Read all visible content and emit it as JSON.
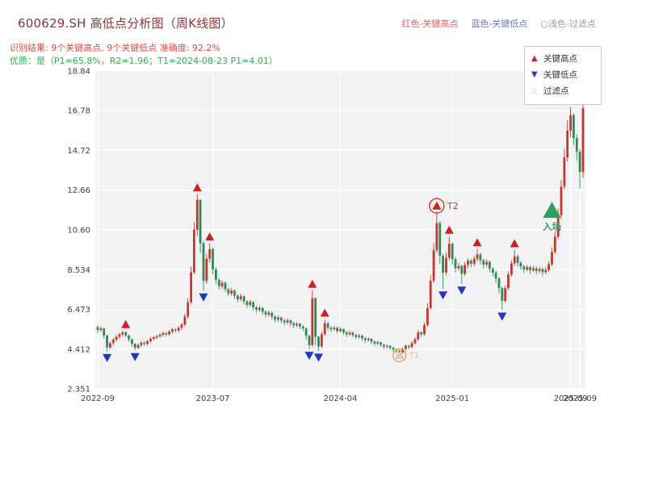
{
  "header": {
    "title": "600629.SH 高低点分析图（周K线图）",
    "color_key": [
      "红色-关键高点",
      "蓝色-关键低点",
      "○浅色-过滤点"
    ],
    "recognition": "识别结果: 9个关键高点, 9个关键低点  准确度: 92.2%",
    "quality": "优质：是（P1=65.8%，R2=1.96；T1=2024-08-23 P1=4.01）"
  },
  "legend": {
    "items": [
      {
        "label": "关键高点",
        "color": "#cf2222"
      },
      {
        "label": "关键低点",
        "color": "#2638c8"
      },
      {
        "label": "过滤点",
        "color": "#dfaaaa"
      }
    ]
  },
  "chart_data": {
    "type": "candlestick",
    "period": "weekly",
    "ylim": [
      2.351,
      18.84
    ],
    "y_ticks": [
      {
        "label": "18.84",
        "v": 18.84
      },
      {
        "label": "16.78",
        "v": 16.78
      },
      {
        "label": "14.72",
        "v": 14.72
      },
      {
        "label": "12.66",
        "v": 12.66
      },
      {
        "label": "10.60",
        "v": 10.6
      },
      {
        "label": "8.534",
        "v": 8.534
      },
      {
        "label": "6.473",
        "v": 6.473
      },
      {
        "label": "4.412",
        "v": 4.412
      },
      {
        "label": "2.351",
        "v": 2.351
      }
    ],
    "x_ticks": [
      {
        "label": "2022-09",
        "i": 0
      },
      {
        "label": "2023-07",
        "i": 37
      },
      {
        "label": "2024-04",
        "i": 78
      },
      {
        "label": "2025-01",
        "i": 114
      },
      {
        "label": "2025-09",
        "i": 152
      },
      {
        "label": "2025-09",
        "i": 155
      }
    ],
    "colors": {
      "up": "#c0392b",
      "down": "#2e8b57",
      "key_high": "#cf2020",
      "key_low": "#2436c4",
      "filtered": "#f0c8c8",
      "entry": "#2f9e63",
      "t1_ring": "#e8a33d",
      "t1_text": "#f2c27d",
      "t2_ring": "#d93025",
      "plot_bg": "#f2f2f4"
    },
    "candles": [
      [
        5.55,
        5.4,
        5.25,
        5.65
      ],
      [
        5.4,
        5.48,
        5.3,
        5.58
      ],
      [
        5.48,
        5.12,
        4.95,
        5.52
      ],
      [
        5.12,
        4.5,
        4.3,
        5.15
      ],
      [
        4.5,
        4.72,
        4.42,
        4.8
      ],
      [
        4.72,
        4.9,
        4.62,
        4.98
      ],
      [
        4.9,
        5.05,
        4.8,
        5.15
      ],
      [
        5.05,
        5.18,
        4.95,
        5.26
      ],
      [
        5.18,
        5.28,
        5.08,
        5.36
      ],
      [
        5.28,
        5.12,
        5.02,
        5.35
      ],
      [
        5.12,
        4.92,
        4.8,
        5.16
      ],
      [
        4.92,
        4.68,
        4.55,
        4.96
      ],
      [
        4.68,
        4.48,
        4.35,
        4.72
      ],
      [
        4.48,
        4.62,
        4.4,
        4.7
      ],
      [
        4.62,
        4.74,
        4.52,
        4.82
      ],
      [
        4.74,
        4.68,
        4.58,
        4.82
      ],
      [
        4.68,
        4.82,
        4.6,
        4.9
      ],
      [
        4.82,
        4.95,
        4.74,
        5.02
      ],
      [
        4.95,
        5.02,
        4.86,
        5.1
      ],
      [
        5.02,
        5.08,
        4.92,
        5.16
      ],
      [
        5.08,
        5.16,
        5.0,
        5.24
      ],
      [
        5.16,
        5.24,
        5.06,
        5.32
      ],
      [
        5.24,
        5.18,
        5.08,
        5.3
      ],
      [
        5.18,
        5.32,
        5.1,
        5.4
      ],
      [
        5.32,
        5.44,
        5.22,
        5.52
      ],
      [
        5.44,
        5.38,
        5.26,
        5.5
      ],
      [
        5.38,
        5.52,
        5.28,
        5.6
      ],
      [
        5.52,
        5.68,
        5.42,
        5.76
      ],
      [
        5.68,
        6.1,
        5.6,
        6.25
      ],
      [
        6.1,
        6.85,
        6.0,
        7.05
      ],
      [
        6.85,
        8.4,
        6.75,
        8.7
      ],
      [
        8.4,
        10.6,
        8.3,
        11.0
      ],
      [
        10.6,
        12.15,
        10.3,
        12.45
      ],
      [
        12.15,
        9.9,
        9.4,
        12.2
      ],
      [
        9.9,
        7.95,
        7.45,
        10.0
      ],
      [
        7.95,
        9.1,
        7.8,
        9.35
      ],
      [
        9.1,
        9.6,
        8.9,
        9.9
      ],
      [
        9.6,
        8.55,
        8.3,
        9.7
      ],
      [
        8.55,
        8.0,
        7.8,
        8.65
      ],
      [
        8.0,
        7.68,
        7.5,
        8.1
      ],
      [
        7.68,
        7.85,
        7.55,
        7.98
      ],
      [
        7.85,
        7.52,
        7.38,
        7.92
      ],
      [
        7.52,
        7.3,
        7.15,
        7.58
      ],
      [
        7.3,
        7.45,
        7.18,
        7.58
      ],
      [
        7.45,
        7.18,
        7.02,
        7.5
      ],
      [
        7.18,
        7.0,
        6.85,
        7.25
      ],
      [
        7.0,
        7.15,
        6.9,
        7.28
      ],
      [
        7.15,
        6.88,
        6.72,
        7.2
      ],
      [
        6.88,
        6.7,
        6.55,
        6.95
      ],
      [
        6.7,
        6.85,
        6.6,
        6.95
      ],
      [
        6.85,
        6.58,
        6.42,
        6.9
      ],
      [
        6.58,
        6.45,
        6.3,
        6.65
      ],
      [
        6.45,
        6.55,
        6.35,
        6.68
      ],
      [
        6.55,
        6.35,
        6.2,
        6.6
      ],
      [
        6.35,
        6.2,
        6.05,
        6.42
      ],
      [
        6.2,
        6.3,
        6.1,
        6.42
      ],
      [
        6.3,
        6.1,
        5.95,
        6.35
      ],
      [
        6.1,
        5.95,
        5.8,
        6.15
      ],
      [
        5.95,
        6.05,
        5.85,
        6.15
      ],
      [
        6.05,
        5.9,
        5.75,
        6.1
      ],
      [
        5.9,
        5.8,
        5.65,
        5.98
      ],
      [
        5.8,
        5.9,
        5.7,
        6.0
      ],
      [
        5.9,
        5.75,
        5.6,
        5.95
      ],
      [
        5.75,
        5.65,
        5.5,
        5.82
      ],
      [
        5.65,
        5.72,
        5.55,
        5.82
      ],
      [
        5.72,
        5.58,
        5.45,
        5.78
      ],
      [
        5.58,
        5.48,
        5.35,
        5.65
      ],
      [
        5.48,
        5.1,
        4.9,
        5.52
      ],
      [
        5.1,
        4.62,
        4.42,
        5.15
      ],
      [
        4.62,
        7.05,
        4.55,
        7.45
      ],
      [
        7.05,
        5.05,
        4.62,
        7.1
      ],
      [
        5.05,
        4.55,
        4.32,
        5.1
      ],
      [
        4.55,
        5.18,
        4.48,
        5.3
      ],
      [
        5.18,
        5.75,
        5.1,
        5.95
      ],
      [
        5.75,
        5.52,
        5.38,
        5.82
      ],
      [
        5.52,
        5.45,
        5.32,
        5.6
      ],
      [
        5.45,
        5.52,
        5.36,
        5.62
      ],
      [
        5.52,
        5.35,
        5.22,
        5.58
      ],
      [
        5.35,
        5.45,
        5.28,
        5.55
      ],
      [
        5.45,
        5.28,
        5.15,
        5.5
      ],
      [
        5.28,
        5.18,
        5.05,
        5.35
      ],
      [
        5.18,
        5.26,
        5.1,
        5.36
      ],
      [
        5.26,
        5.14,
        5.02,
        5.32
      ],
      [
        5.14,
        5.04,
        4.92,
        5.2
      ],
      [
        5.04,
        5.1,
        4.96,
        5.2
      ],
      [
        5.1,
        4.98,
        4.86,
        5.16
      ],
      [
        4.98,
        4.88,
        4.76,
        5.04
      ],
      [
        4.88,
        4.94,
        4.8,
        5.02
      ],
      [
        4.94,
        4.8,
        4.68,
        4.98
      ],
      [
        4.8,
        4.7,
        4.58,
        4.86
      ],
      [
        4.7,
        4.76,
        4.62,
        4.84
      ],
      [
        4.76,
        4.63,
        4.52,
        4.8
      ],
      [
        4.63,
        4.54,
        4.42,
        4.68
      ],
      [
        4.54,
        4.58,
        4.46,
        4.66
      ],
      [
        4.58,
        4.48,
        4.36,
        4.62
      ],
      [
        4.48,
        4.4,
        4.28,
        4.54
      ],
      [
        4.4,
        4.33,
        4.2,
        4.46
      ],
      [
        4.33,
        4.25,
        4.01,
        4.38
      ],
      [
        4.25,
        4.42,
        4.18,
        4.5
      ],
      [
        4.42,
        4.58,
        4.34,
        4.66
      ],
      [
        4.58,
        4.52,
        4.4,
        4.62
      ],
      [
        4.52,
        4.72,
        4.46,
        4.82
      ],
      [
        4.72,
        4.92,
        4.64,
        5.02
      ],
      [
        4.92,
        5.28,
        4.85,
        5.4
      ],
      [
        5.28,
        5.18,
        5.05,
        5.35
      ],
      [
        5.18,
        5.66,
        5.1,
        5.8
      ],
      [
        5.66,
        6.55,
        5.58,
        6.8
      ],
      [
        6.55,
        7.95,
        6.45,
        8.25
      ],
      [
        7.95,
        9.55,
        7.85,
        9.9
      ],
      [
        9.55,
        10.95,
        9.4,
        11.55
      ],
      [
        10.95,
        9.25,
        8.85,
        11.05
      ],
      [
        9.25,
        8.38,
        7.55,
        9.35
      ],
      [
        8.38,
        9.15,
        8.25,
        9.4
      ],
      [
        9.15,
        9.88,
        9.0,
        10.25
      ],
      [
        9.88,
        9.08,
        8.8,
        9.95
      ],
      [
        9.08,
        8.6,
        8.38,
        9.18
      ],
      [
        8.6,
        8.72,
        8.48,
        8.88
      ],
      [
        8.72,
        8.32,
        7.8,
        8.8
      ],
      [
        8.32,
        8.78,
        8.22,
        8.92
      ],
      [
        8.78,
        9.0,
        8.62,
        9.14
      ],
      [
        9.0,
        8.84,
        8.66,
        9.1
      ],
      [
        8.84,
        9.1,
        8.72,
        9.25
      ],
      [
        9.1,
        9.32,
        8.95,
        9.6
      ],
      [
        9.32,
        9.02,
        8.82,
        9.42
      ],
      [
        9.02,
        8.8,
        8.6,
        9.1
      ],
      [
        8.8,
        8.94,
        8.68,
        9.06
      ],
      [
        8.94,
        8.58,
        8.4,
        9.0
      ],
      [
        8.58,
        8.38,
        8.18,
        8.66
      ],
      [
        8.38,
        8.08,
        7.85,
        8.48
      ],
      [
        8.08,
        7.58,
        7.3,
        8.16
      ],
      [
        7.58,
        6.92,
        6.45,
        7.65
      ],
      [
        6.92,
        7.58,
        6.82,
        7.72
      ],
      [
        7.58,
        8.28,
        7.48,
        8.45
      ],
      [
        8.28,
        8.86,
        8.18,
        9.02
      ],
      [
        8.86,
        9.22,
        8.72,
        9.55
      ],
      [
        9.22,
        8.88,
        8.68,
        9.32
      ],
      [
        8.88,
        8.7,
        8.52,
        8.98
      ],
      [
        8.7,
        8.54,
        8.36,
        8.8
      ],
      [
        8.54,
        8.66,
        8.44,
        8.78
      ],
      [
        8.66,
        8.5,
        8.32,
        8.74
      ],
      [
        8.5,
        8.6,
        8.42,
        8.72
      ],
      [
        8.6,
        8.46,
        8.28,
        8.7
      ],
      [
        8.46,
        8.56,
        8.36,
        8.68
      ],
      [
        8.56,
        8.4,
        8.22,
        8.64
      ],
      [
        8.4,
        8.52,
        8.3,
        8.66
      ],
      [
        8.52,
        8.82,
        8.42,
        8.95
      ],
      [
        8.82,
        9.45,
        8.72,
        9.7
      ],
      [
        9.45,
        10.25,
        9.35,
        10.5
      ],
      [
        10.25,
        11.35,
        10.1,
        11.7
      ],
      [
        11.35,
        12.85,
        11.2,
        13.2
      ],
      [
        12.85,
        14.35,
        12.7,
        14.8
      ],
      [
        14.35,
        15.75,
        14.15,
        16.3
      ],
      [
        15.75,
        16.55,
        15.4,
        16.95
      ],
      [
        16.55,
        15.35,
        15.0,
        16.65
      ],
      [
        15.35,
        14.65,
        14.2,
        15.55
      ],
      [
        14.65,
        13.6,
        12.75,
        14.8
      ],
      [
        13.6,
        16.9,
        13.3,
        17.35
      ]
    ],
    "key_highs": [
      {
        "i": 9,
        "price": 5.35
      },
      {
        "i": 32,
        "price": 12.45
      },
      {
        "i": 36,
        "price": 9.9
      },
      {
        "i": 69,
        "price": 7.45
      },
      {
        "i": 73,
        "price": 5.95
      },
      {
        "i": 113,
        "price": 10.25
      },
      {
        "i": 122,
        "price": 9.6
      },
      {
        "i": 134,
        "price": 9.55
      }
    ],
    "key_lows": [
      {
        "i": 3,
        "price": 4.3
      },
      {
        "i": 12,
        "price": 4.35
      },
      {
        "i": 34,
        "price": 7.45
      },
      {
        "i": 68,
        "price": 4.42
      },
      {
        "i": 71,
        "price": 4.32
      },
      {
        "i": 111,
        "price": 7.55
      },
      {
        "i": 117,
        "price": 7.8
      },
      {
        "i": 130,
        "price": 6.45
      }
    ],
    "t1": {
      "i": 97,
      "price": 4.01,
      "label": "T1"
    },
    "t2": {
      "i": 109,
      "price": 11.55,
      "label": "T2"
    },
    "entry": {
      "i": 146,
      "price": 11.6,
      "label": "入场"
    }
  }
}
